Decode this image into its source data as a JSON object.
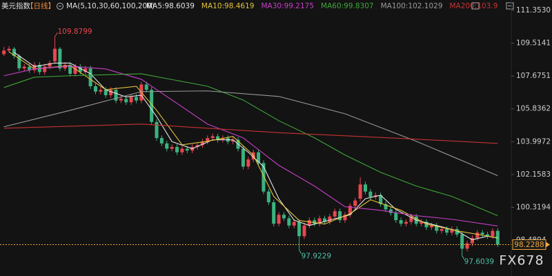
{
  "chart_data": {
    "type": "candlestick",
    "title": "美元指数",
    "period": "【日线】",
    "indicator": "MA(5,10,30,60,100,200)",
    "logo": "FX678",
    "up_color": "#e8474f",
    "down_color": "#3bb27f",
    "last_price_color": "#f2a93b",
    "high_label_color": "#e8474f",
    "low_label_color": "#4dc1a8",
    "grid": false,
    "ylim": [
      96.47,
      111.933
    ],
    "yticks": [
      {
        "value": 111.353,
        "label": "111.3530"
      },
      109.5141,
      107.6751,
      105.8362,
      103.9972,
      102.1583,
      100.3194,
      98.4804
    ],
    "open": [
      108.9,
      109.1,
      109.2,
      108.8,
      108.1,
      108.2,
      108.0,
      108.3,
      107.9,
      108.2,
      108.5,
      109.2,
      108.1,
      108.3,
      107.8,
      108.2,
      107.9,
      108.1,
      107.1,
      106.8,
      106.9,
      106.6,
      106.9,
      106.3,
      106.4,
      106.2,
      106.5,
      106.3,
      107.2,
      106.9,
      105.1,
      104.2,
      103.9,
      103.6,
      103.7,
      103.4,
      103.6,
      103.5,
      103.7,
      103.8,
      104.0,
      104.2,
      104.3,
      104.1,
      104.2,
      104.0,
      104.1,
      103.6,
      102.6,
      103.0,
      103.4,
      102.8,
      101.2,
      100.6,
      99.4,
      99.9,
      99.7,
      99.3,
      99.5,
      98.7,
      99.3,
      99.6,
      99.4,
      99.7,
      99.5,
      99.8,
      100.1,
      99.6,
      99.9,
      100.4,
      100.8,
      101.6,
      101.2,
      100.9,
      101.0,
      100.5,
      100.2,
      100.0,
      99.6,
      99.4,
      99.5,
      99.8,
      99.4,
      99.5,
      99.2,
      99.3,
      99.0,
      99.1,
      98.9,
      99.1,
      98.8,
      98.0,
      98.3,
      98.6,
      98.9,
      98.8,
      98.7,
      99.0
    ],
    "high": [
      109.3,
      109.35,
      109.3,
      108.9,
      108.35,
      108.35,
      108.45,
      108.45,
      108.35,
      108.55,
      109.8799,
      109.3,
      108.45,
      108.45,
      108.35,
      108.35,
      108.25,
      108.25,
      107.25,
      107.05,
      107.05,
      107.05,
      107.05,
      106.55,
      106.55,
      106.65,
      106.65,
      107.35,
      107.35,
      107.05,
      105.25,
      104.35,
      104.05,
      103.85,
      103.85,
      103.75,
      103.75,
      103.85,
      103.95,
      104.15,
      104.35,
      104.45,
      104.45,
      104.35,
      104.35,
      104.25,
      104.25,
      103.75,
      103.15,
      103.55,
      103.55,
      102.95,
      101.35,
      100.75,
      100.05,
      100.05,
      99.85,
      99.65,
      99.65,
      99.45,
      99.75,
      99.75,
      99.85,
      99.85,
      99.95,
      100.25,
      100.25,
      100.05,
      100.55,
      100.85,
      102.0,
      101.75,
      101.35,
      101.15,
      101.15,
      100.65,
      100.35,
      100.15,
      99.75,
      99.65,
      99.95,
      99.95,
      99.65,
      99.65,
      99.45,
      99.45,
      99.25,
      99.25,
      99.25,
      99.25,
      98.95,
      98.45,
      98.75,
      99.05,
      99.05,
      98.95,
      99.15,
      99.15
    ],
    "low": [
      108.8,
      109.0,
      108.65,
      107.95,
      107.95,
      107.85,
      107.85,
      107.75,
      107.75,
      108.05,
      108.35,
      107.95,
      107.95,
      107.65,
      107.65,
      107.75,
      107.75,
      106.95,
      106.65,
      106.65,
      106.45,
      106.45,
      106.15,
      106.15,
      106.05,
      106.05,
      106.15,
      106.15,
      106.75,
      104.95,
      104.05,
      103.75,
      103.45,
      103.45,
      103.25,
      103.25,
      103.35,
      103.35,
      103.55,
      103.65,
      103.85,
      104.05,
      103.95,
      103.95,
      103.85,
      103.85,
      103.45,
      102.45,
      102.45,
      102.85,
      102.65,
      101.05,
      100.45,
      99.25,
      99.25,
      99.55,
      99.15,
      99.15,
      97.9229,
      98.55,
      99.15,
      99.25,
      99.25,
      99.35,
      99.35,
      99.65,
      99.45,
      99.45,
      99.75,
      100.25,
      100.65,
      101.05,
      100.75,
      100.75,
      100.35,
      100.05,
      99.85,
      99.45,
      99.25,
      99.25,
      99.35,
      99.25,
      99.25,
      99.05,
      99.05,
      98.85,
      98.85,
      98.75,
      98.75,
      98.65,
      97.6039,
      97.85,
      98.15,
      98.45,
      98.65,
      98.55,
      98.55,
      98.1
    ],
    "close": [
      109.1,
      109.2,
      108.8,
      108.1,
      108.2,
      108.0,
      108.3,
      107.9,
      108.2,
      108.4,
      109.2,
      108.1,
      108.3,
      107.8,
      108.2,
      107.9,
      108.1,
      107.1,
      106.8,
      106.9,
      106.6,
      106.9,
      106.3,
      106.4,
      106.2,
      106.5,
      106.3,
      107.2,
      106.9,
      105.1,
      104.2,
      103.9,
      103.6,
      103.7,
      103.4,
      103.6,
      103.5,
      103.7,
      103.8,
      104.0,
      104.2,
      104.3,
      104.1,
      104.2,
      104.0,
      104.1,
      103.6,
      102.6,
      103.0,
      103.4,
      102.8,
      101.2,
      100.6,
      99.4,
      99.9,
      99.7,
      99.3,
      99.5,
      98.7,
      99.3,
      99.6,
      99.4,
      99.7,
      99.5,
      99.8,
      100.1,
      99.6,
      99.9,
      100.4,
      100.7,
      101.6,
      101.2,
      100.9,
      101.0,
      100.5,
      100.2,
      100.0,
      99.6,
      99.4,
      99.5,
      99.8,
      99.4,
      99.5,
      99.2,
      99.3,
      99.0,
      99.1,
      98.9,
      99.1,
      98.8,
      98.0,
      98.3,
      98.6,
      98.9,
      98.8,
      98.7,
      99.0,
      98.2288
    ],
    "series": [
      {
        "name": "MA5:98.6039",
        "color": "#e6e6e6",
        "x": [
          2,
          6,
          10,
          13,
          17,
          20,
          24,
          27,
          30,
          33,
          37,
          41,
          45,
          48,
          51,
          54,
          57,
          60,
          64,
          68,
          71,
          74,
          77,
          81,
          85,
          89,
          92,
          95,
          97
        ],
        "values": [
          109.0,
          108.2,
          108.4,
          108.4,
          107.8,
          106.9,
          106.5,
          106.6,
          105.4,
          104.0,
          103.6,
          104.1,
          104.1,
          103.4,
          102.6,
          100.8,
          99.6,
          99.3,
          99.6,
          99.9,
          100.8,
          101.0,
          100.2,
          99.6,
          99.3,
          99.0,
          98.5,
          98.7,
          98.6
        ]
      },
      {
        "name": "MA10:98.4619",
        "color": "#e3c43c",
        "x": [
          1,
          6,
          13,
          20,
          26,
          30,
          35,
          40,
          45,
          49,
          53,
          58,
          63,
          68,
          72,
          78,
          83,
          89,
          97
        ],
        "values": [
          109.03,
          108.07,
          108.26,
          106.91,
          107.1,
          105.75,
          103.82,
          104.02,
          104.29,
          103.24,
          100.93,
          99.58,
          99.38,
          99.96,
          100.74,
          100.15,
          99.38,
          99.0,
          98.61
        ]
      },
      {
        "name": "MA30:99.2175",
        "color": "#c83fc8",
        "x": [
          0,
          6,
          13,
          20,
          27,
          34,
          40,
          47,
          54,
          61,
          67,
          74,
          81,
          88,
          97
        ],
        "values": [
          107.69,
          108.07,
          108.23,
          108.07,
          107.49,
          106.14,
          104.98,
          104.21,
          102.67,
          101.51,
          100.35,
          100.15,
          99.85,
          99.65,
          99.27
        ]
      },
      {
        "name": "MA60:99.8307",
        "color": "#3fa63a",
        "x": [
          0,
          6,
          13,
          27,
          40,
          47,
          54,
          61,
          67,
          74,
          81,
          88,
          97
        ],
        "values": [
          107.03,
          107.61,
          107.69,
          107.8,
          107.1,
          106.33,
          105.17,
          104.21,
          103.25,
          102.28,
          101.51,
          100.93,
          99.85
        ]
      },
      {
        "name": "MA100:102.1029",
        "color": "#9a9a9a",
        "x": [
          0,
          13,
          27,
          40,
          54,
          67,
          81,
          97
        ],
        "values": [
          104.83,
          105.75,
          106.8,
          106.84,
          106.53,
          105.56,
          104.02,
          102.09
        ]
      },
      {
        "name": "MA200:103.9",
        "color": "#c83232",
        "x": [
          0,
          27,
          54,
          80,
          97
        ],
        "values": [
          104.75,
          104.98,
          104.5,
          104.15,
          103.9
        ]
      }
    ]
  }
}
